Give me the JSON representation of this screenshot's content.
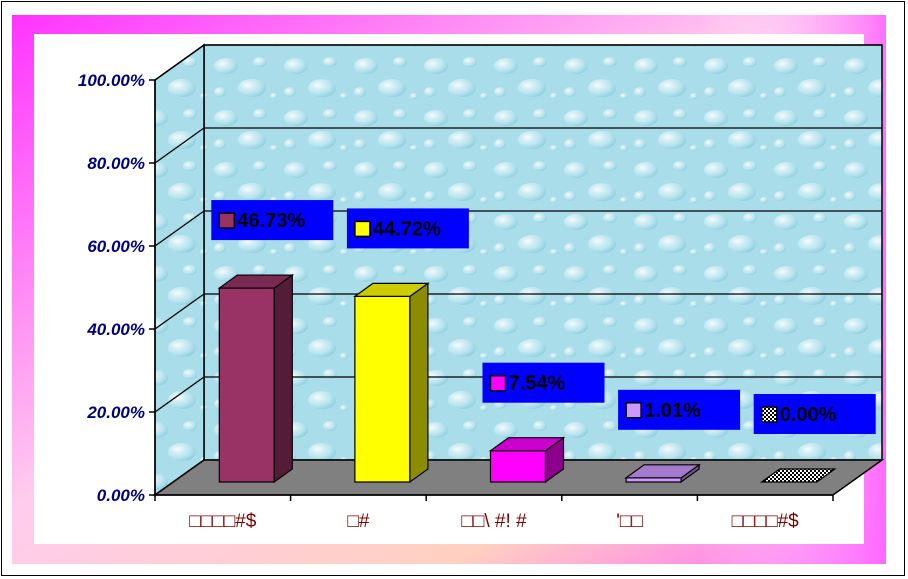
{
  "chart_data": {
    "type": "bar",
    "title": "",
    "xlabel": "",
    "ylabel": "",
    "ylim": [
      0,
      100
    ],
    "y_ticks": [
      "0.00%",
      "20.00%",
      "40.00%",
      "60.00%",
      "80.00%",
      "100.00%"
    ],
    "categories": [
      "□□□□#$",
      "□#",
      "□□\\ #! #",
      "'□□",
      "□□□□#$"
    ],
    "values": [
      46.73,
      44.72,
      7.54,
      1.01,
      0.0
    ],
    "data_labels": [
      "46.73%",
      "44.72%",
      "7.54%",
      "1.01%",
      "0.00%"
    ],
    "bar_colors": [
      "#993366",
      "#ffff00",
      "#ff00ff",
      "#cc99ff",
      "#333333"
    ],
    "label_box_color": "#0000ff",
    "category_label_color": "#800000",
    "axis_label_color": "#000080",
    "background_gradient": [
      "#ff00ff",
      "#ff9966",
      "#ffffff"
    ],
    "plot_wall_color": "#a8dce8",
    "floor_color": "#808080",
    "grid": true,
    "three_d": true,
    "legend": "none"
  }
}
